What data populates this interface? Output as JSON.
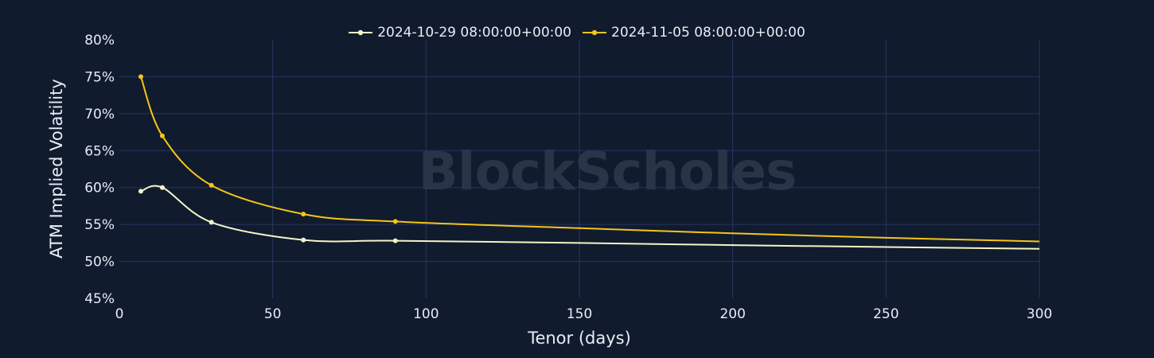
{
  "watermark": "BlockScholes",
  "chart_data": {
    "type": "line",
    "xlabel": "Tenor (days)",
    "ylabel": "ATM Implied Volatility",
    "xlim": [
      0,
      300
    ],
    "ylim": [
      45,
      80
    ],
    "xticks": [
      0,
      50,
      100,
      150,
      200,
      250,
      300
    ],
    "yticks": [
      45,
      50,
      55,
      60,
      65,
      70,
      75,
      80
    ],
    "ytick_labels": [
      "45%",
      "50%",
      "55%",
      "60%",
      "65%",
      "70%",
      "75%",
      "80%"
    ],
    "grid": true,
    "legend_position": "top-center",
    "series": [
      {
        "name": "2024-10-29 08:00:00+00:00",
        "color": "#f3f5c4",
        "markers": [
          [
            7,
            59.5
          ],
          [
            14,
            60.0
          ],
          [
            30,
            55.3
          ],
          [
            60,
            52.9
          ],
          [
            90,
            52.8
          ]
        ],
        "values": [
          [
            7,
            59.5
          ],
          [
            14,
            60.0
          ],
          [
            30,
            55.3
          ],
          [
            60,
            52.9
          ],
          [
            90,
            52.8
          ],
          [
            150,
            52.5
          ],
          [
            200,
            52.2
          ],
          [
            250,
            51.95
          ],
          [
            300,
            51.7
          ]
        ]
      },
      {
        "name": "2024-11-05 08:00:00+00:00",
        "color": "#f5c518",
        "markers": [
          [
            7,
            75.0
          ],
          [
            14,
            67.0
          ],
          [
            30,
            60.3
          ],
          [
            60,
            56.4
          ],
          [
            90,
            55.4
          ]
        ],
        "values": [
          [
            7,
            75.0
          ],
          [
            14,
            67.0
          ],
          [
            30,
            60.3
          ],
          [
            60,
            56.4
          ],
          [
            90,
            55.4
          ],
          [
            150,
            54.5
          ],
          [
            200,
            53.8
          ],
          [
            250,
            53.2
          ],
          [
            300,
            52.7
          ]
        ]
      }
    ]
  }
}
